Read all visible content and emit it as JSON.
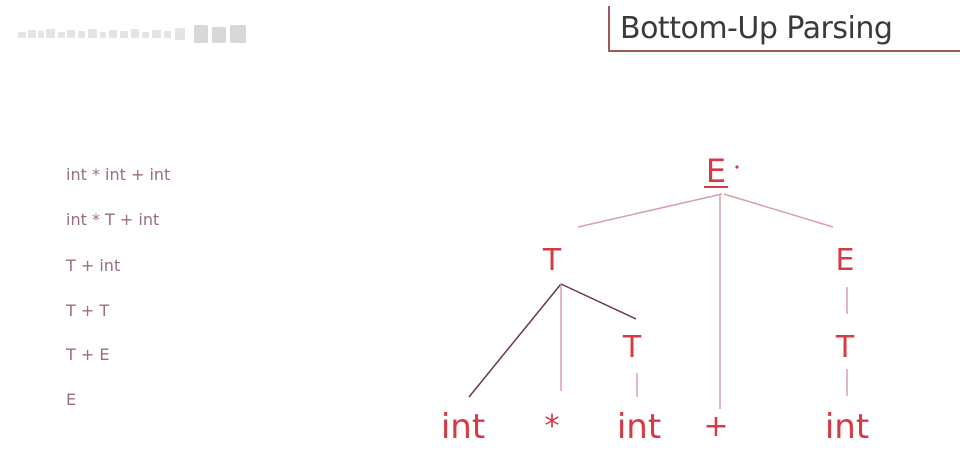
{
  "slide": {
    "title": "Bottom-Up Parsing",
    "logo": "STANFORD UNIVERSITY"
  },
  "derivation": [
    "int * int + int",
    "int * T  + int",
    "T + int",
    "T + T",
    "T + E",
    "E"
  ],
  "tree": {
    "nodes": {
      "root_E": "E",
      "mid_T": "T",
      "mid_E": "E",
      "mid_T2": "T",
      "mid_T3": "T",
      "leaf_int1": "int",
      "leaf_star": "*",
      "leaf_int2": "int",
      "leaf_plus": "+",
      "leaf_int3": "int"
    },
    "edges": [
      [
        "root_E",
        "mid_T"
      ],
      [
        "root_E",
        "leaf_plus"
      ],
      [
        "root_E",
        "mid_E"
      ],
      [
        "mid_T",
        "leaf_int1"
      ],
      [
        "mid_T",
        "leaf_star"
      ],
      [
        "mid_T",
        "mid_T2"
      ],
      [
        "mid_T2",
        "leaf_int2"
      ],
      [
        "mid_E",
        "mid_T3"
      ],
      [
        "mid_T3",
        "leaf_int3"
      ]
    ]
  },
  "colors": {
    "node_text": "#d63a44",
    "edge": "#d9a0a6",
    "edge_dark": "#6a3a3e",
    "derivation_text": "#9a7075",
    "title_border": "#9c5a5e"
  }
}
